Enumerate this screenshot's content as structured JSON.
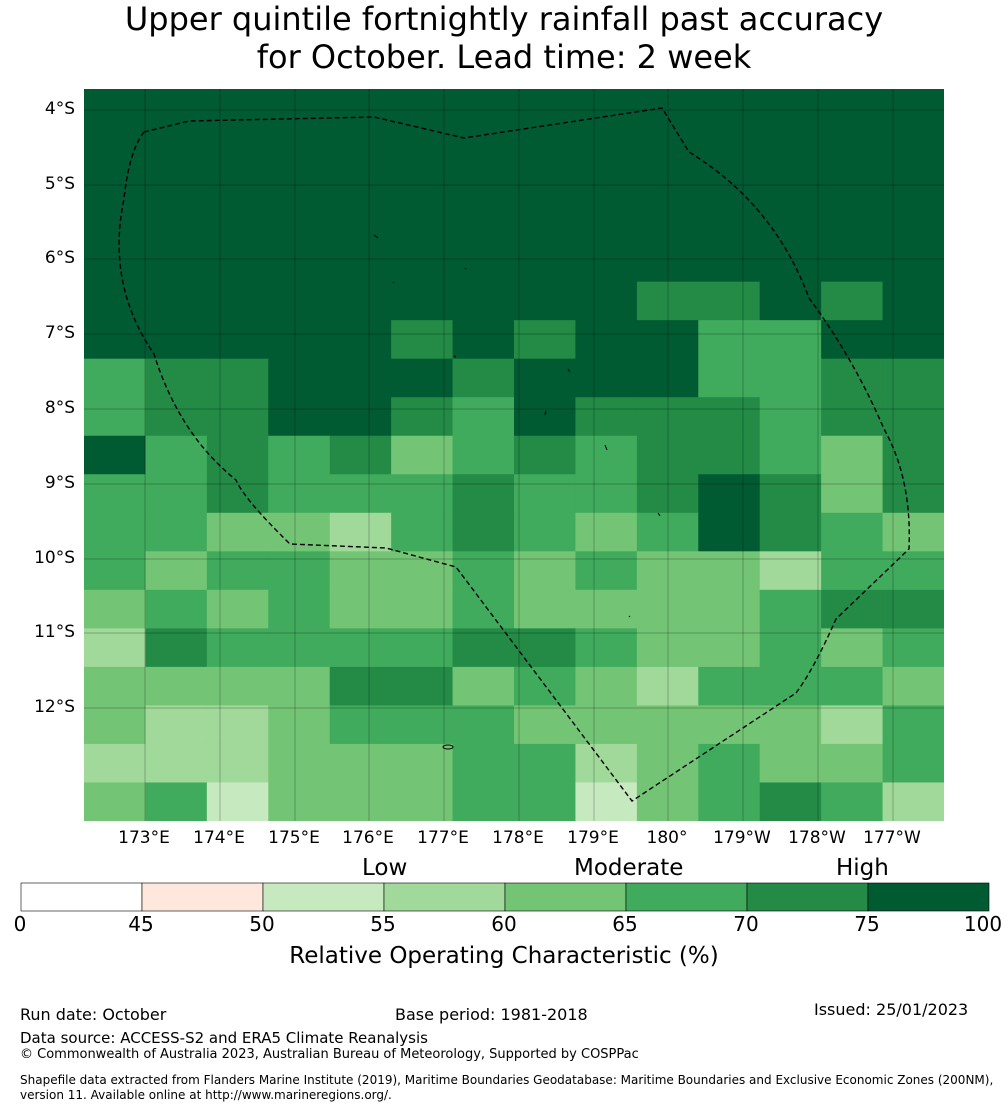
{
  "title_line1": "Upper quintile fortnightly rainfall past accuracy",
  "title_line2": "for October. Lead time: 2 week",
  "lat_labels": [
    "4°S",
    "5°S",
    "6°S",
    "7°S",
    "8°S",
    "9°S",
    "10°S",
    "11°S",
    "12°S"
  ],
  "lon_labels": [
    "173°E",
    "174°E",
    "175°E",
    "176°E",
    "177°E",
    "178°E",
    "179°E",
    "180°",
    "179°W",
    "178°W",
    "177°W"
  ],
  "colorbar": {
    "categories": [
      "Low",
      "Moderate",
      "High"
    ],
    "ticks": [
      "0",
      "45",
      "50",
      "55",
      "60",
      "65",
      "70",
      "75",
      "100"
    ],
    "colors": [
      "#ffffff",
      "#fee8dd",
      "#c7e9c0",
      "#a1d99b",
      "#74c476",
      "#41ab5d",
      "#238b45",
      "#005a32"
    ],
    "label": "Relative Operating Characteristic (%)"
  },
  "grid_data": {
    "description": "ROC class index per cell (0=<45, 1=45-50, 2=50-55, 3=55-60, 4=60-65, 5=65-70, 6=70-75, 7=75-100)",
    "rows": [
      [
        7,
        7,
        7,
        7,
        7,
        7,
        7,
        7,
        7,
        7,
        7,
        7,
        7,
        7
      ],
      [
        7,
        7,
        7,
        7,
        7,
        7,
        7,
        7,
        7,
        7,
        7,
        7,
        7,
        7
      ],
      [
        7,
        7,
        7,
        7,
        7,
        7,
        7,
        7,
        7,
        7,
        7,
        7,
        7,
        7
      ],
      [
        7,
        7,
        7,
        7,
        7,
        7,
        7,
        7,
        7,
        7,
        7,
        7,
        7,
        7
      ],
      [
        7,
        7,
        7,
        7,
        7,
        7,
        7,
        7,
        7,
        7,
        7,
        7,
        7,
        7
      ],
      [
        7,
        7,
        7,
        7,
        7,
        7,
        7,
        7,
        7,
        6,
        6,
        7,
        6,
        7
      ],
      [
        7,
        7,
        7,
        7,
        7,
        6,
        7,
        6,
        7,
        7,
        5,
        5,
        7,
        7
      ],
      [
        5,
        6,
        6,
        7,
        7,
        7,
        6,
        7,
        7,
        7,
        5,
        5,
        6,
        6
      ],
      [
        5,
        6,
        6,
        7,
        7,
        6,
        5,
        7,
        6,
        6,
        6,
        5,
        6,
        6
      ],
      [
        7,
        5,
        6,
        5,
        6,
        4,
        5,
        6,
        5,
        6,
        6,
        5,
        4,
        6
      ],
      [
        5,
        5,
        6,
        5,
        5,
        5,
        6,
        5,
        5,
        6,
        7,
        6,
        4,
        6
      ],
      [
        5,
        5,
        4,
        4,
        3,
        5,
        6,
        5,
        4,
        5,
        7,
        6,
        5,
        4
      ],
      [
        5,
        4,
        5,
        5,
        4,
        4,
        5,
        4,
        5,
        4,
        4,
        3,
        5,
        5
      ],
      [
        4,
        5,
        4,
        5,
        4,
        4,
        5,
        4,
        4,
        4,
        4,
        5,
        6,
        6
      ],
      [
        3,
        6,
        5,
        5,
        5,
        5,
        6,
        6,
        5,
        4,
        4,
        5,
        4,
        5
      ],
      [
        4,
        4,
        4,
        4,
        6,
        6,
        4,
        5,
        4,
        3,
        5,
        5,
        5,
        4
      ],
      [
        4,
        3,
        3,
        4,
        5,
        5,
        5,
        4,
        4,
        4,
        4,
        4,
        3,
        5
      ],
      [
        3,
        3,
        3,
        4,
        4,
        4,
        5,
        5,
        3,
        4,
        5,
        4,
        4,
        5
      ],
      [
        4,
        5,
        2,
        4,
        4,
        4,
        5,
        5,
        2,
        4,
        5,
        6,
        5,
        3
      ]
    ]
  },
  "run_date": "Run date: October",
  "base_period": "Base period: 1981-2018",
  "issued": "Issued: 25/01/2023",
  "data_source": "Data source: ACCESS-S2 and ERA5 Climate Reanalysis",
  "copyright": "© Commonwealth of Australia 2023, Australian Bureau of Meteorology, Supported by COSPPac",
  "shapefile_line1": "Shapefile data extracted from Flanders Marine Institute (2019), Maritime Boundaries Geodatabase: Maritime Boundaries and Exclusive Economic Zones (200NM),",
  "shapefile_line2": "version 11. Available online at http://www.marineregions.org/."
}
